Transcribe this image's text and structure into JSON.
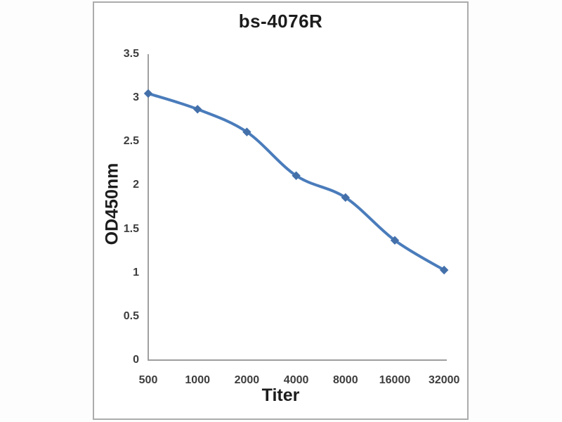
{
  "chart_data": {
    "type": "line",
    "title": "bs-4076R",
    "xlabel": "Titer",
    "ylabel": "OD450nm",
    "categories": [
      "500",
      "1000",
      "2000",
      "4000",
      "8000",
      "16000",
      "32000"
    ],
    "series": [
      {
        "name": "bs-4076R",
        "values": [
          3.05,
          2.87,
          2.61,
          2.11,
          1.86,
          1.37,
          1.03
        ]
      }
    ],
    "ylim": [
      0,
      3.5
    ],
    "y_ticks": [
      0,
      0.5,
      1,
      1.5,
      2,
      2.5,
      3,
      3.5
    ],
    "y_tick_labels": [
      "0",
      "0.5",
      "1",
      "1.5",
      "2",
      "2.5",
      "3",
      "3.5"
    ],
    "grid": false,
    "legend": "none",
    "line_style": "smooth",
    "marker": "diamond",
    "colors": {
      "line": "#4a7cbb",
      "marker": "#4470aa",
      "axis": "#909090",
      "tick_text": "#3d3d3d",
      "title_text": "#1c1c1c",
      "panel_border": "#acacac"
    }
  }
}
